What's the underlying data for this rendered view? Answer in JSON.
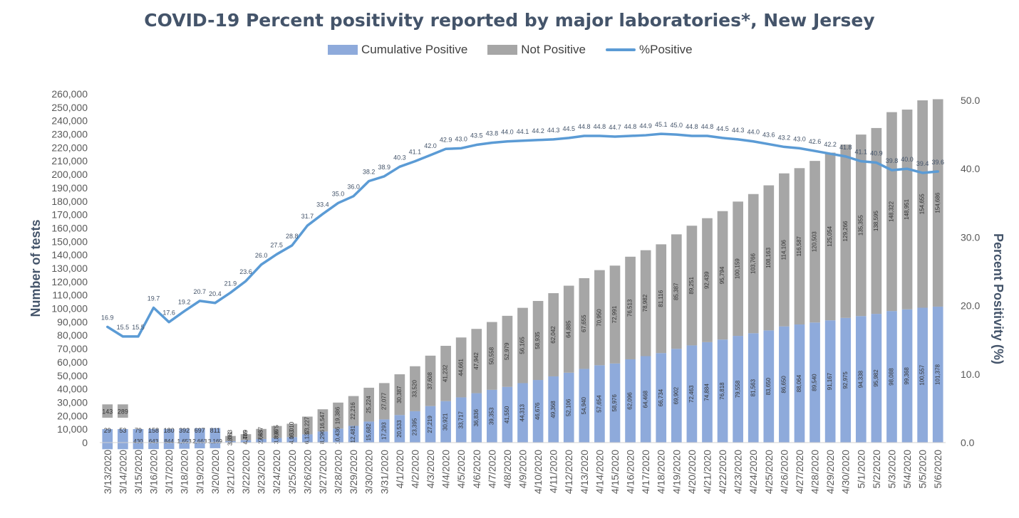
{
  "chart_data": {
    "type": "bar",
    "title": "COVID-19 Percent positivity reported by major laboratories*, New Jersey",
    "ylabel": "Number of  tests",
    "y2label": "Percent Positivity (%)",
    "ylim": [
      0,
      260000
    ],
    "y2lim": [
      0,
      50
    ],
    "y_ticks": [
      "0",
      "10,000",
      "20,000",
      "30,000",
      "40,000",
      "50,000",
      "60,000",
      "70,000",
      "80,000",
      "90,000",
      "100,000",
      "110,000",
      "120,000",
      "130,000",
      "140,000",
      "150,000",
      "160,000",
      "170,000",
      "180,000",
      "190,000",
      "200,000",
      "210,000",
      "220,000",
      "230,000",
      "240,000",
      "250,000",
      "260,000"
    ],
    "y2_ticks": [
      "0.0",
      "10.0",
      "20.0",
      "30.0",
      "40.0",
      "50.0"
    ],
    "legend_position": "top",
    "grid": false,
    "colors": {
      "positive": "#8eaadb",
      "not_positive": "#a6a6a6",
      "line": "#5b9bd5",
      "title": "#44546a",
      "text": "#595959"
    },
    "categories": [
      "3/13/2020",
      "3/14/2020",
      "3/15/2020",
      "3/16/2020",
      "3/17/2020",
      "3/18/2020",
      "3/19/2020",
      "3/20/2020",
      "3/21/2020",
      "3/22/2020",
      "3/23/2020",
      "3/24/2020",
      "3/25/2020",
      "3/26/2020",
      "3/27/2020",
      "3/28/2020",
      "3/29/2020",
      "3/30/2020",
      "3/31/2020",
      "4/1/2020",
      "4/2/2020",
      "4/3/2020",
      "4/4/2020",
      "4/5/2020",
      "4/6/2020",
      "4/7/2020",
      "4/8/2020",
      "4/9/2020",
      "4/10/2020",
      "4/11/2020",
      "4/12/2020",
      "4/13/2020",
      "4/14/2020",
      "4/15/2020",
      "4/16/2020",
      "4/17/2020",
      "4/18/2020",
      "4/19/2020",
      "4/20/2020",
      "4/21/2020",
      "4/22/2020",
      "4/23/2020",
      "4/24/2020",
      "4/25/2020",
      "4/26/2020",
      "4/27/2020",
      "4/28/2020",
      "4/29/2020",
      "4/30/2020",
      "5/1/2020",
      "5/2/2020",
      "5/3/2020",
      "5/4/2020",
      "5/5/2020",
      "5/6/2020"
    ],
    "series": [
      {
        "name": "Cumulative Positive",
        "kind": "bar",
        "stack": 1,
        "values": [
          29,
          53,
          79,
          158,
          180,
          392,
          697,
          811,
          1053,
          1769,
          2645,
          3398,
          4053,
          6137,
          8296,
          10436,
          12481,
          15682,
          17293,
          20533,
          23395,
          27219,
          30921,
          33717,
          36836,
          39353,
          41550,
          44313,
          46676,
          49368,
          52106,
          54940,
          57654,
          58976,
          62096,
          64468,
          66734,
          69902,
          72463,
          74884,
          76818,
          79558,
          81563,
          83650,
          86650,
          88064,
          89540,
          91167,
          92975,
          94338,
          95982,
          98088,
          99368,
          100557,
          101378
        ],
        "labels": [
          "29",
          "53",
          "79",
          "158",
          "180",
          "392",
          "697",
          "811",
          "1,053",
          "1,769",
          "2,645",
          "3,398",
          "4,053",
          "6,137",
          "8,296",
          "10,436",
          "12,481",
          "15,682",
          "17,293",
          "20,533",
          "23,395",
          "27,219",
          "30,921",
          "33,717",
          "36,836",
          "39,353",
          "41,550",
          "44,313",
          "46,676",
          "49,368",
          "52,106",
          "54,940",
          "57,654",
          "58,976",
          "62,096",
          "64,468",
          "66,734",
          "69,902",
          "72,463",
          "74,884",
          "76,818",
          "79,558",
          "81,563",
          "83,650",
          "86,650",
          "88,064",
          "89,540",
          "91,167",
          "92,975",
          "94,338",
          "95,982",
          "98,088",
          "99,368",
          "100,557",
          "101,378"
        ]
      },
      {
        "name": "Not Positive",
        "kind": "bar",
        "stack": 2,
        "values": [
          143,
          289,
          430,
          643,
          844,
          1653,
          2663,
          3169,
          3891,
          4485,
          7537,
          8975,
          10010,
          13227,
          16547,
          19386,
          22216,
          25224,
          27077,
          30387,
          33520,
          37608,
          41232,
          44661,
          47942,
          50558,
          52979,
          56165,
          58935,
          62042,
          64885,
          67655,
          70950,
          72991,
          76513,
          78982,
          81116,
          85387,
          89251,
          92439,
          95794,
          100159,
          103766,
          108163,
          114106,
          116587,
          120503,
          125054,
          129266,
          135355,
          138595,
          148322,
          148951,
          154655,
          154686
        ],
        "labels": [
          "143",
          "289",
          "430",
          "643",
          "844",
          "1,653",
          "2,663",
          "3,169",
          "3,891",
          "4,485",
          "7,537",
          "8,975",
          "10,010",
          "13,227",
          "16,547",
          "19,386",
          "22,216",
          "25,224",
          "27,077",
          "30,387",
          "33,520",
          "37,608",
          "41,232",
          "44,661",
          "47,942",
          "50,558",
          "52,979",
          "56,165",
          "58,935",
          "62,042",
          "64,885",
          "67,655",
          "70,950",
          "72,991",
          "76,513",
          "78,982",
          "81,116",
          "85,387",
          "89,251",
          "92,439",
          "95,794",
          "100,159",
          "103,766",
          "108,163",
          "114,106",
          "116,587",
          "120,503",
          "125,054",
          "129,266",
          "135,355",
          "138,595",
          "148,322",
          "148,951",
          "154,655",
          "154,686"
        ]
      },
      {
        "name": "%Positive",
        "kind": "line",
        "axis": "right",
        "values": [
          16.9,
          15.5,
          15.5,
          19.7,
          17.6,
          19.2,
          20.7,
          20.4,
          21.9,
          23.6,
          26.0,
          27.5,
          28.8,
          31.7,
          33.4,
          35.0,
          36.0,
          38.2,
          38.9,
          40.3,
          41.1,
          42.0,
          42.9,
          43.0,
          43.5,
          43.8,
          44.0,
          44.1,
          44.2,
          44.3,
          44.5,
          44.8,
          44.8,
          44.7,
          44.8,
          44.9,
          45.1,
          45.0,
          44.8,
          44.8,
          44.5,
          44.3,
          44.0,
          43.6,
          43.2,
          43.0,
          42.6,
          42.2,
          41.8,
          41.1,
          40.9,
          39.8,
          40.0,
          39.4,
          39.6
        ],
        "labels": [
          "16.9",
          "15.5",
          "15.5",
          "19.7",
          "17.6",
          "19.2",
          "20.7",
          "20.4",
          "21.9",
          "23.6",
          "26.0",
          "27.5",
          "28.8",
          "31.7",
          "33.4",
          "35.0",
          "36.0",
          "38.2",
          "38.9",
          "40.3",
          "41.1",
          "42.0",
          "42.9",
          "43.0",
          "43.5",
          "43.8",
          "44.0",
          "44.1",
          "44.2",
          "44.3",
          "44.5",
          "44.8",
          "44.8",
          "44.7",
          "44.8",
          "44.9",
          "45.1",
          "45.0",
          "44.8",
          "44.8",
          "44.5",
          "44.3",
          "44.0",
          "43.6",
          "43.2",
          "43.0",
          "42.6",
          "42.2",
          "41.8",
          "41.1",
          "40.9",
          "39.8",
          "40.0",
          "39.4",
          "39.6"
        ]
      }
    ]
  }
}
